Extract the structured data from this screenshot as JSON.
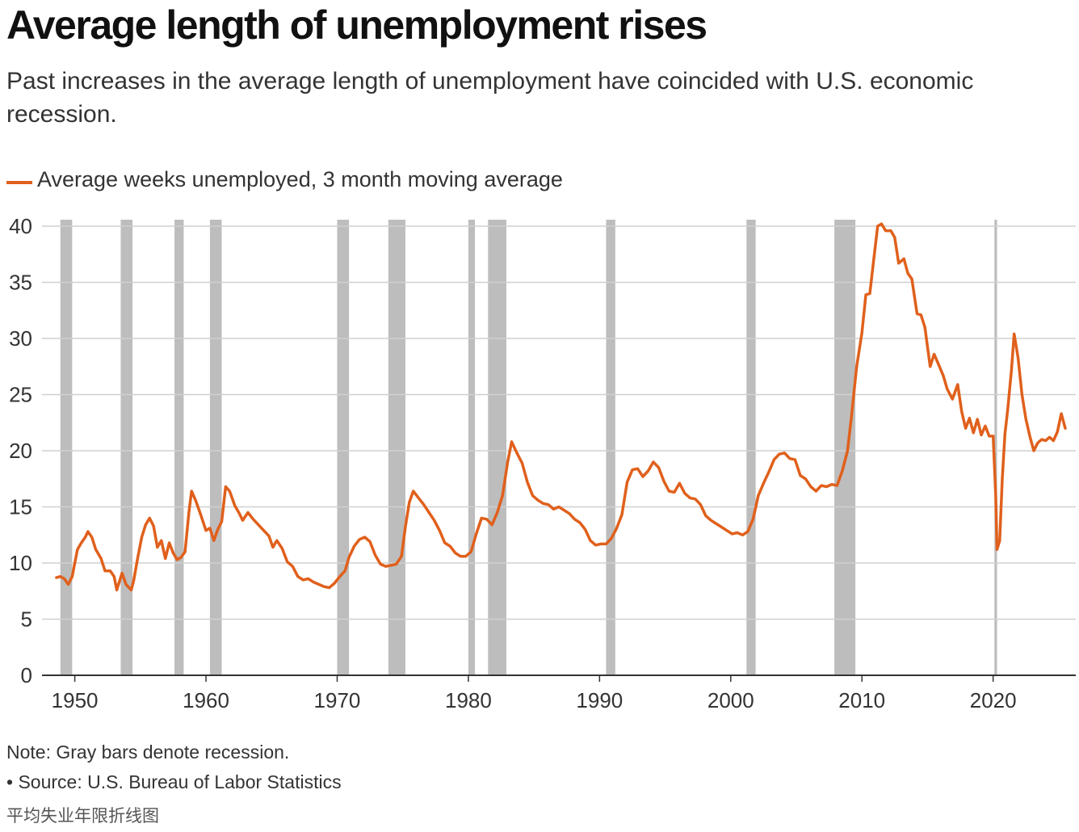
{
  "header": {
    "title": "Average length of unemployment rises",
    "subtitle": "Past increases in the average length of unemployment have coincided with U.S. economic recession."
  },
  "legend": {
    "label": "Average weeks unemployed, 3 month moving average"
  },
  "footer": {
    "note": "Note: Gray bars denote recession.",
    "source": "• Source: U.S. Bureau of Labor Statistics",
    "caption": "平均失业年限折线图"
  },
  "colors": {
    "line": "#e0601c",
    "recession": "#bdbdbd",
    "grid": "#d0d0d0",
    "axis": "#333333"
  },
  "chart_data": {
    "type": "line",
    "title": "Average length of unemployment rises",
    "xlabel": "",
    "ylabel": "",
    "xlim": [
      1947.5,
      2026.3
    ],
    "ylim": [
      0,
      40
    ],
    "x_ticks": [
      1950,
      1960,
      1970,
      1980,
      1990,
      2000,
      2010,
      2020
    ],
    "y_ticks": [
      0,
      5,
      10,
      15,
      20,
      25,
      30,
      35,
      40
    ],
    "grid": "horizontal",
    "legend_position": "top-left",
    "recessions": [
      [
        1948.9,
        1949.8
      ],
      [
        1953.5,
        1954.4
      ],
      [
        1957.6,
        1958.3
      ],
      [
        1960.3,
        1961.2
      ],
      [
        1970.0,
        1970.9
      ],
      [
        1973.9,
        1975.2
      ],
      [
        1980.0,
        1980.5
      ],
      [
        1981.5,
        1982.9
      ],
      [
        1990.5,
        1991.2
      ],
      [
        2001.2,
        2001.9
      ],
      [
        2007.9,
        2009.5
      ],
      [
        2020.1,
        2020.3
      ]
    ],
    "series": [
      {
        "name": "Average weeks unemployed, 3 month moving average",
        "points": [
          [
            1948.6,
            8.7
          ],
          [
            1948.9,
            8.8
          ],
          [
            1949.2,
            8.6
          ],
          [
            1949.5,
            8.1
          ],
          [
            1949.8,
            8.8
          ],
          [
            1950.0,
            10.0
          ],
          [
            1950.2,
            11.2
          ],
          [
            1950.5,
            11.8
          ],
          [
            1950.8,
            12.3
          ],
          [
            1951.0,
            12.8
          ],
          [
            1951.3,
            12.3
          ],
          [
            1951.6,
            11.2
          ],
          [
            1952.0,
            10.4
          ],
          [
            1952.3,
            9.3
          ],
          [
            1952.7,
            9.3
          ],
          [
            1953.0,
            8.8
          ],
          [
            1953.2,
            7.6
          ],
          [
            1953.6,
            9.1
          ],
          [
            1953.9,
            8.1
          ],
          [
            1954.3,
            7.6
          ],
          [
            1954.5,
            8.5
          ],
          [
            1954.8,
            10.5
          ],
          [
            1955.1,
            12.3
          ],
          [
            1955.4,
            13.4
          ],
          [
            1955.7,
            14.0
          ],
          [
            1956.0,
            13.3
          ],
          [
            1956.3,
            11.4
          ],
          [
            1956.6,
            12.0
          ],
          [
            1956.9,
            10.4
          ],
          [
            1957.2,
            11.8
          ],
          [
            1957.5,
            10.9
          ],
          [
            1957.8,
            10.3
          ],
          [
            1958.1,
            10.5
          ],
          [
            1958.4,
            11.0
          ],
          [
            1958.7,
            14.5
          ],
          [
            1958.9,
            16.4
          ],
          [
            1959.2,
            15.6
          ],
          [
            1959.6,
            14.3
          ],
          [
            1960.0,
            12.9
          ],
          [
            1960.3,
            13.1
          ],
          [
            1960.6,
            12.0
          ],
          [
            1960.9,
            13.0
          ],
          [
            1961.2,
            13.7
          ],
          [
            1961.5,
            16.8
          ],
          [
            1961.8,
            16.4
          ],
          [
            1962.2,
            15.1
          ],
          [
            1962.5,
            14.5
          ],
          [
            1962.8,
            13.8
          ],
          [
            1963.2,
            14.5
          ],
          [
            1963.6,
            13.9
          ],
          [
            1964.0,
            13.4
          ],
          [
            1964.4,
            12.9
          ],
          [
            1964.8,
            12.4
          ],
          [
            1965.1,
            11.4
          ],
          [
            1965.4,
            12.0
          ],
          [
            1965.8,
            11.3
          ],
          [
            1966.2,
            10.1
          ],
          [
            1966.6,
            9.7
          ],
          [
            1967.0,
            8.8
          ],
          [
            1967.4,
            8.5
          ],
          [
            1967.8,
            8.6
          ],
          [
            1968.2,
            8.3
          ],
          [
            1968.6,
            8.1
          ],
          [
            1969.0,
            7.9
          ],
          [
            1969.4,
            7.8
          ],
          [
            1969.8,
            8.2
          ],
          [
            1970.2,
            8.8
          ],
          [
            1970.6,
            9.3
          ],
          [
            1970.9,
            10.5
          ],
          [
            1971.3,
            11.5
          ],
          [
            1971.7,
            12.1
          ],
          [
            1972.1,
            12.3
          ],
          [
            1972.5,
            11.9
          ],
          [
            1972.9,
            10.7
          ],
          [
            1973.3,
            9.9
          ],
          [
            1973.7,
            9.7
          ],
          [
            1974.1,
            9.8
          ],
          [
            1974.5,
            9.9
          ],
          [
            1974.9,
            10.6
          ],
          [
            1975.2,
            13.2
          ],
          [
            1975.5,
            15.4
          ],
          [
            1975.8,
            16.4
          ],
          [
            1976.2,
            15.8
          ],
          [
            1976.6,
            15.2
          ],
          [
            1977.0,
            14.5
          ],
          [
            1977.4,
            13.8
          ],
          [
            1977.8,
            12.9
          ],
          [
            1978.2,
            11.8
          ],
          [
            1978.6,
            11.5
          ],
          [
            1979.0,
            10.9
          ],
          [
            1979.4,
            10.6
          ],
          [
            1979.8,
            10.6
          ],
          [
            1980.2,
            11.0
          ],
          [
            1980.6,
            12.6
          ],
          [
            1981.0,
            14.0
          ],
          [
            1981.4,
            13.9
          ],
          [
            1981.8,
            13.4
          ],
          [
            1982.2,
            14.5
          ],
          [
            1982.6,
            16.0
          ],
          [
            1983.0,
            19.0
          ],
          [
            1983.3,
            20.8
          ],
          [
            1983.7,
            19.8
          ],
          [
            1984.1,
            18.9
          ],
          [
            1984.5,
            17.2
          ],
          [
            1984.9,
            16.0
          ],
          [
            1985.3,
            15.6
          ],
          [
            1985.7,
            15.3
          ],
          [
            1986.1,
            15.2
          ],
          [
            1986.5,
            14.8
          ],
          [
            1986.9,
            15.0
          ],
          [
            1987.3,
            14.7
          ],
          [
            1987.7,
            14.4
          ],
          [
            1988.1,
            13.9
          ],
          [
            1988.5,
            13.6
          ],
          [
            1988.9,
            13.0
          ],
          [
            1989.3,
            12.0
          ],
          [
            1989.7,
            11.6
          ],
          [
            1990.1,
            11.7
          ],
          [
            1990.5,
            11.7
          ],
          [
            1990.9,
            12.2
          ],
          [
            1991.3,
            13.1
          ],
          [
            1991.7,
            14.3
          ],
          [
            1992.1,
            17.2
          ],
          [
            1992.5,
            18.3
          ],
          [
            1992.9,
            18.4
          ],
          [
            1993.3,
            17.7
          ],
          [
            1993.7,
            18.2
          ],
          [
            1994.1,
            19.0
          ],
          [
            1994.5,
            18.5
          ],
          [
            1994.9,
            17.3
          ],
          [
            1995.3,
            16.4
          ],
          [
            1995.7,
            16.3
          ],
          [
            1996.1,
            17.1
          ],
          [
            1996.5,
            16.2
          ],
          [
            1996.9,
            15.8
          ],
          [
            1997.3,
            15.7
          ],
          [
            1997.7,
            15.2
          ],
          [
            1998.1,
            14.2
          ],
          [
            1998.5,
            13.8
          ],
          [
            1998.9,
            13.5
          ],
          [
            1999.3,
            13.2
          ],
          [
            1999.7,
            12.9
          ],
          [
            2000.1,
            12.6
          ],
          [
            2000.5,
            12.7
          ],
          [
            2000.9,
            12.5
          ],
          [
            2001.3,
            12.8
          ],
          [
            2001.7,
            13.9
          ],
          [
            2002.1,
            16.0
          ],
          [
            2002.5,
            17.1
          ],
          [
            2002.9,
            18.1
          ],
          [
            2003.3,
            19.2
          ],
          [
            2003.7,
            19.7
          ],
          [
            2004.1,
            19.8
          ],
          [
            2004.5,
            19.3
          ],
          [
            2004.9,
            19.2
          ],
          [
            2005.3,
            17.8
          ],
          [
            2005.7,
            17.5
          ],
          [
            2006.1,
            16.8
          ],
          [
            2006.5,
            16.4
          ],
          [
            2006.9,
            16.9
          ],
          [
            2007.3,
            16.8
          ],
          [
            2007.7,
            17.0
          ],
          [
            2008.1,
            16.9
          ],
          [
            2008.5,
            18.2
          ],
          [
            2008.9,
            20.0
          ],
          [
            2009.2,
            23.0
          ],
          [
            2009.6,
            27.5
          ],
          [
            2010.0,
            30.5
          ],
          [
            2010.3,
            33.9
          ],
          [
            2010.6,
            34.0
          ],
          [
            2010.9,
            37.0
          ],
          [
            2011.2,
            40.0
          ],
          [
            2011.5,
            40.2
          ],
          [
            2011.8,
            39.6
          ],
          [
            2012.2,
            39.6
          ],
          [
            2012.5,
            39.0
          ],
          [
            2012.8,
            36.7
          ],
          [
            2013.2,
            37.1
          ],
          [
            2013.5,
            35.8
          ],
          [
            2013.8,
            35.3
          ],
          [
            2014.2,
            32.2
          ],
          [
            2014.5,
            32.1
          ],
          [
            2014.8,
            31.0
          ],
          [
            2015.2,
            27.5
          ],
          [
            2015.5,
            28.6
          ],
          [
            2015.8,
            27.8
          ],
          [
            2016.2,
            26.7
          ],
          [
            2016.5,
            25.5
          ],
          [
            2016.9,
            24.6
          ],
          [
            2017.3,
            25.9
          ],
          [
            2017.6,
            23.5
          ],
          [
            2017.9,
            22.0
          ],
          [
            2018.2,
            22.9
          ],
          [
            2018.5,
            21.6
          ],
          [
            2018.8,
            22.8
          ],
          [
            2019.1,
            21.4
          ],
          [
            2019.4,
            22.2
          ],
          [
            2019.7,
            21.3
          ],
          [
            2020.0,
            21.3
          ],
          [
            2020.2,
            16.0
          ],
          [
            2020.3,
            11.2
          ],
          [
            2020.5,
            12.0
          ],
          [
            2020.7,
            17.5
          ],
          [
            2020.9,
            21.5
          ],
          [
            2021.1,
            23.5
          ],
          [
            2021.4,
            27.2
          ],
          [
            2021.6,
            30.4
          ],
          [
            2021.9,
            28.3
          ],
          [
            2022.2,
            25.0
          ],
          [
            2022.5,
            22.8
          ],
          [
            2022.8,
            21.3
          ],
          [
            2023.1,
            20.0
          ],
          [
            2023.4,
            20.7
          ],
          [
            2023.7,
            21.0
          ],
          [
            2024.0,
            20.9
          ],
          [
            2024.3,
            21.2
          ],
          [
            2024.6,
            20.9
          ],
          [
            2024.9,
            21.7
          ],
          [
            2025.2,
            23.3
          ],
          [
            2025.5,
            22.0
          ]
        ]
      }
    ]
  }
}
